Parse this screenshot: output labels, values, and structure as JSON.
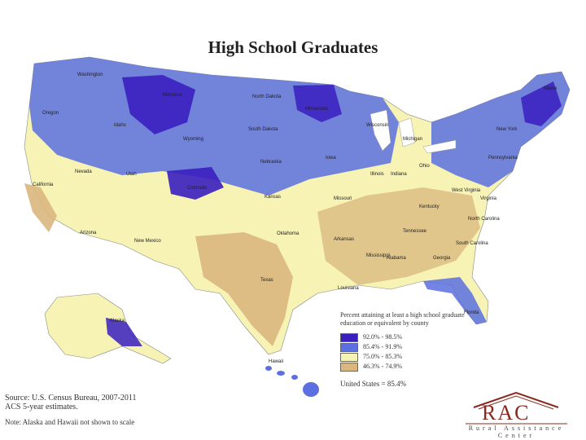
{
  "title": "High School Graduates",
  "legend": {
    "title": "Percent attaining at least a high school graduate education or equivalent by county",
    "items": [
      {
        "label": "92.0% - 98.5%",
        "color": "#3a1fbf"
      },
      {
        "label": "85.4% - 91.9%",
        "color": "#5b6fe0"
      },
      {
        "label": "75.0% - 85.3%",
        "color": "#f7f3b4"
      },
      {
        "label": "46.3% - 74.9%",
        "color": "#d9b77e"
      }
    ],
    "us_total": "United States = 85.4%"
  },
  "source": {
    "line1": "Source: U.S. Census Bureau, 2007-2011",
    "line2": "ACS 5-year estimates."
  },
  "note": "Note: Alaska and Hawaii not shown to scale",
  "logo": {
    "letters": "RAC",
    "subtitle": "Rural Assistance Center"
  },
  "states": [
    "Washington",
    "Oregon",
    "Idaho",
    "Montana",
    "Wyoming",
    "Nevada",
    "Utah",
    "Colorado",
    "California",
    "Arizona",
    "New Mexico",
    "North Dakota",
    "South Dakota",
    "Nebraska",
    "Kansas",
    "Oklahoma",
    "Texas",
    "Minnesota",
    "Iowa",
    "Missouri",
    "Arkansas",
    "Louisiana",
    "Wisconsin",
    "Illinois",
    "Michigan",
    "Indiana",
    "Ohio",
    "Kentucky",
    "Tennessee",
    "Mississippi",
    "Alabama",
    "Georgia",
    "Florida",
    "South Carolina",
    "North Carolina",
    "Virginia",
    "West Virginia",
    "Pennsylvania",
    "New York",
    "Maine",
    "Alaska",
    "Hawaii"
  ]
}
